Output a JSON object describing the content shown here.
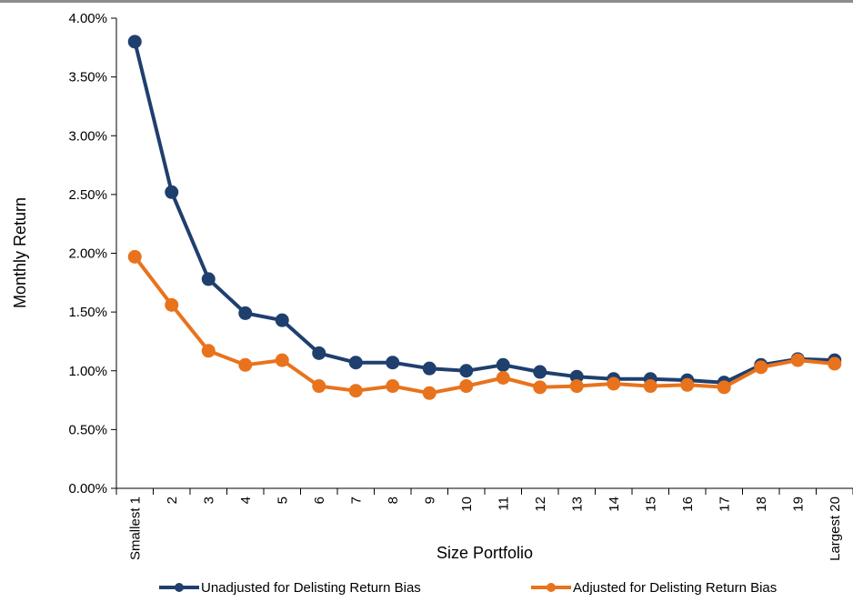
{
  "chart_data": {
    "type": "line",
    "xlabel": "Size Portfolio",
    "ylabel": "Monthly Return",
    "categories": [
      "Smallest 1",
      "2",
      "3",
      "4",
      "5",
      "6",
      "7",
      "8",
      "9",
      "10",
      "11",
      "12",
      "13",
      "14",
      "15",
      "16",
      "17",
      "18",
      "19",
      "Largest 20"
    ],
    "ylim": [
      0,
      0.04
    ],
    "yticks": [
      0,
      0.005,
      0.01,
      0.015,
      0.02,
      0.025,
      0.03,
      0.035,
      0.04
    ],
    "ytick_labels": [
      "0.00%",
      "0.50%",
      "1.00%",
      "1.50%",
      "2.00%",
      "2.50%",
      "3.00%",
      "3.50%",
      "4.00%"
    ],
    "grid": false,
    "legend_position": "bottom",
    "series": [
      {
        "name": "Unadjusted for Delisting Return Bias",
        "color": "#1f3f6e",
        "values": [
          0.038,
          0.0252,
          0.0178,
          0.0149,
          0.0143,
          0.0115,
          0.0107,
          0.0107,
          0.0102,
          0.01,
          0.0105,
          0.0099,
          0.0095,
          0.0093,
          0.0093,
          0.0092,
          0.009,
          0.0105,
          0.011,
          0.0109
        ]
      },
      {
        "name": "Adjusted for Delisting Return Bias",
        "color": "#e8731c",
        "values": [
          0.0197,
          0.0156,
          0.0117,
          0.0105,
          0.0109,
          0.0087,
          0.0083,
          0.0087,
          0.0081,
          0.0087,
          0.0094,
          0.0086,
          0.0087,
          0.0089,
          0.0087,
          0.0088,
          0.0086,
          0.0103,
          0.0109,
          0.0106
        ]
      }
    ]
  }
}
